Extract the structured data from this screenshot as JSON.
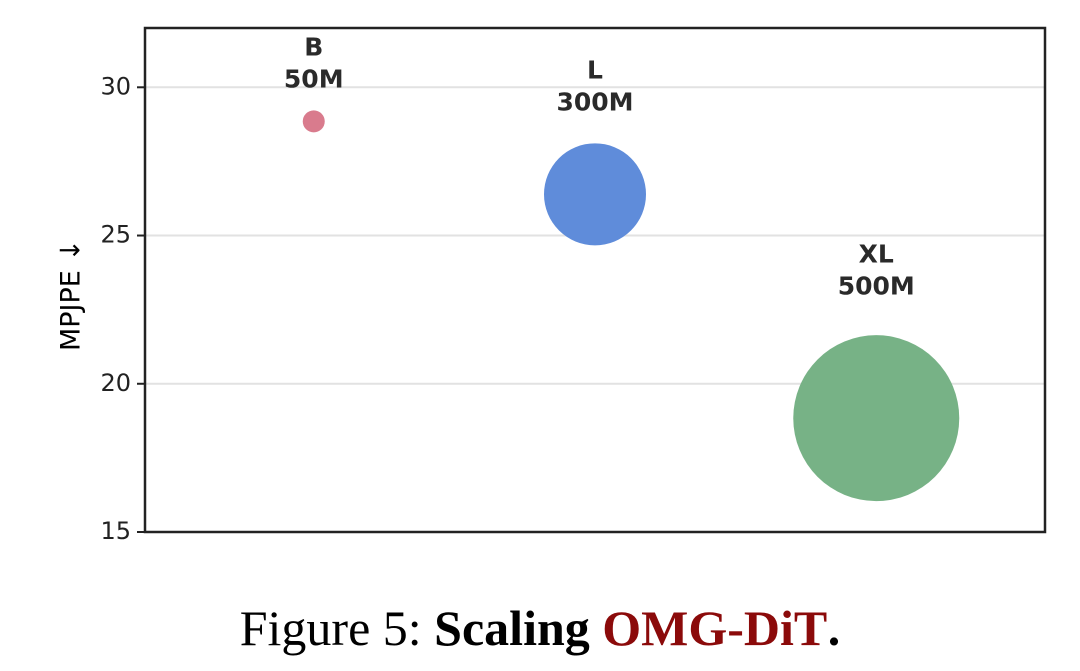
{
  "chart_data": {
    "type": "bubble",
    "y_label": "MPJPE ↓",
    "categories": [
      "B",
      "L",
      "XL"
    ],
    "series": [
      {
        "name": null,
        "colors": [
          "#d97b8d",
          "#5f8cda",
          "#77b286"
        ],
        "values": [
          28.85,
          26.39,
          18.84
        ],
        "sizes": [
          50,
          300,
          500
        ],
        "size_labels": [
          "50M",
          "300M",
          "500M"
        ]
      }
    ],
    "ylim": [
      15,
      32
    ],
    "yticks": [
      15,
      20,
      25,
      30
    ],
    "grid": true
  },
  "caption": {
    "prefix": "Figure 5:",
    "bold": "Scaling",
    "highlight": "OMG-DiT",
    "end": "."
  }
}
